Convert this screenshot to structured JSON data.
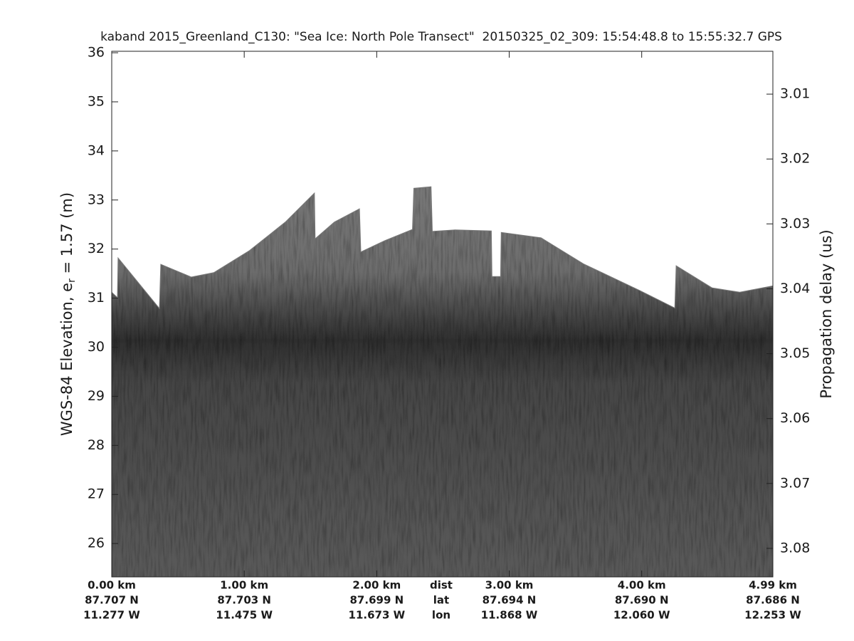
{
  "chart_data": {
    "type": "echogram",
    "title": "kaband 2015_Greenland_C130: \"Sea Ice: North Pole Transect\"  20150325_02_309: 15:54:48.8 to 15:55:32.7 GPS",
    "ylabel": [
      "WGS-84 Elevation, e",
      "r",
      " = 1.57 (m)"
    ],
    "y2label": "Propagation delay (us)",
    "x": [
      0,
      0.043,
      0.048,
      0.36,
      0.37,
      0.6,
      0.77,
      1.04,
      1.31,
      1.53,
      1.535,
      1.68,
      1.87,
      1.88,
      2.06,
      2.27,
      2.28,
      2.41,
      2.42,
      2.59,
      2.865,
      2.87,
      2.935,
      2.94,
      3.24,
      3.56,
      3.99,
      4.25,
      4.26,
      4.53,
      4.74,
      4.99
    ],
    "values": [
      31.12,
      31.01,
      31.82,
      30.79,
      31.69,
      31.43,
      31.52,
      31.97,
      32.55,
      33.14,
      32.21,
      32.55,
      32.82,
      31.94,
      32.17,
      32.4,
      33.24,
      33.27,
      32.36,
      32.39,
      32.37,
      31.44,
      31.44,
      32.34,
      32.23,
      31.7,
      31.15,
      30.8,
      31.66,
      31.21,
      31.12,
      31.25
    ],
    "xlim": [
      0,
      4.99
    ],
    "xticks": [
      {
        "value": 0,
        "label": "0.00 km"
      },
      {
        "value": 1,
        "label": "1.00 km"
      },
      {
        "value": 2,
        "label": "2.00 km"
      },
      {
        "value": 3,
        "label": "3.00 km"
      },
      {
        "value": 4,
        "label": "4.00 km"
      },
      {
        "value": 4.99,
        "label": "4.99 km"
      }
    ],
    "xtick_lat": [
      "87.707 N",
      "87.703 N",
      "87.699 N",
      "87.694 N",
      "87.690 N",
      "87.686 N"
    ],
    "xtick_lon": [
      "11.277 W",
      "11.475 W",
      "11.673 W",
      "11.868 W",
      "12.060 W",
      "12.253 W"
    ],
    "xtick_rows": [
      "dist",
      "lat",
      "lon"
    ],
    "ylim": [
      25.32,
      36.03
    ],
    "yticks": [
      26,
      27,
      28,
      29,
      30,
      31,
      32,
      33,
      34,
      35,
      36
    ],
    "y2lim": [
      3.0844,
      3.0034
    ],
    "y2ticks": [
      3.01,
      3.02,
      3.03,
      3.04,
      3.05,
      3.06,
      3.07,
      3.08
    ]
  }
}
